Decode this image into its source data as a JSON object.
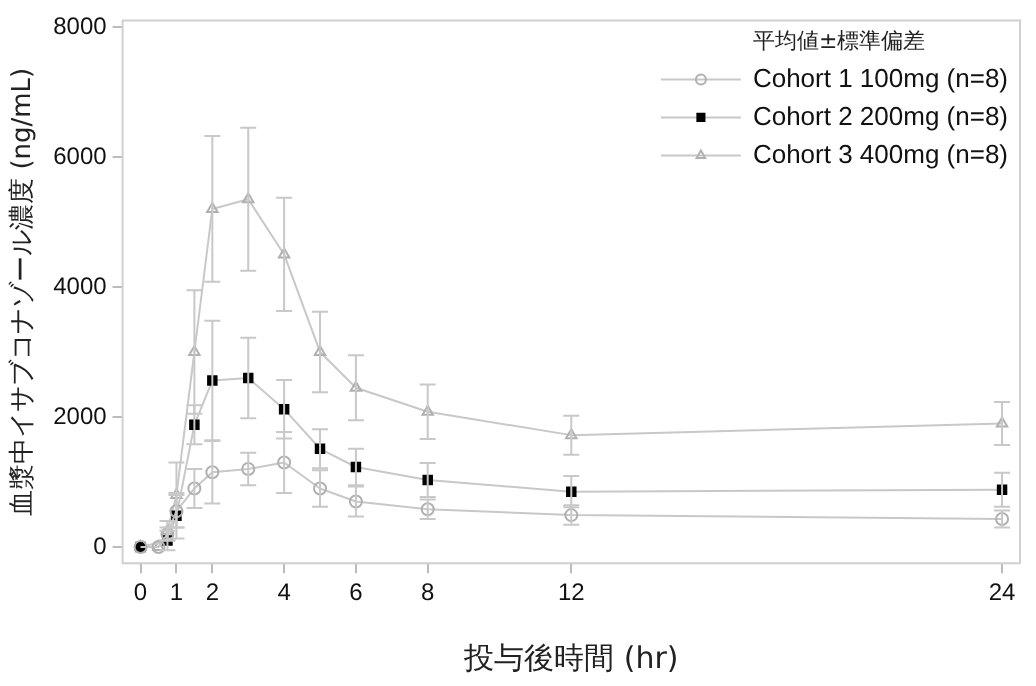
{
  "chart_data": {
    "type": "line",
    "xlabel": "投与後時間 (hr)",
    "ylabel": "血漿中イサブコナゾール濃度 (ng/mL)",
    "legend_title": "平均値±標準偏差",
    "legend": "top right",
    "grid": false,
    "xlim": [
      -0.5,
      24.5
    ],
    "xticks": [
      0,
      1,
      2,
      4,
      6,
      8,
      12,
      24
    ],
    "ylim": [
      -250,
      8100
    ],
    "yticks": [
      0,
      2000,
      4000,
      6000,
      8000
    ],
    "series": [
      {
        "name": "Cohort 1 100mg (n=8)",
        "color": "#b0b0b0",
        "marker": "circle",
        "x": [
          0,
          0.5,
          0.75,
          1,
          1.5,
          2,
          3,
          4,
          5,
          6,
          8,
          12,
          24
        ],
        "values": [
          0,
          0,
          200,
          550,
          900,
          1150,
          1200,
          1300,
          900,
          700,
          580,
          490,
          430
        ],
        "errors": [
          null,
          null,
          100,
          250,
          300,
          480,
          250,
          470,
          280,
          230,
          150,
          150,
          130
        ]
      },
      {
        "name": "Cohort 2 200mg (n=8)",
        "color": "#000000",
        "marker": "square",
        "x": [
          0,
          0.75,
          1,
          1.5,
          2,
          3,
          4,
          5,
          6,
          8,
          12,
          24
        ],
        "values": [
          0,
          100,
          480,
          1880,
          2560,
          2600,
          2120,
          1510,
          1230,
          1030,
          850,
          880
        ],
        "errors": [
          null,
          150,
          350,
          300,
          920,
          620,
          450,
          300,
          280,
          260,
          240,
          260
        ]
      },
      {
        "name": "Cohort 3 400mg (n=8)",
        "color": "#b0b0b0",
        "marker": "triangle",
        "x": [
          0,
          0.5,
          0.75,
          1,
          1.5,
          2,
          3,
          4,
          5,
          6,
          8,
          12,
          24
        ],
        "values": [
          0,
          0,
          250,
          800,
          3000,
          5200,
          5350,
          4500,
          3000,
          2450,
          2080,
          1720,
          1900
        ],
        "errors": [
          null,
          null,
          150,
          500,
          950,
          1120,
          1100,
          870,
          620,
          500,
          420,
          300,
          330
        ]
      }
    ]
  }
}
